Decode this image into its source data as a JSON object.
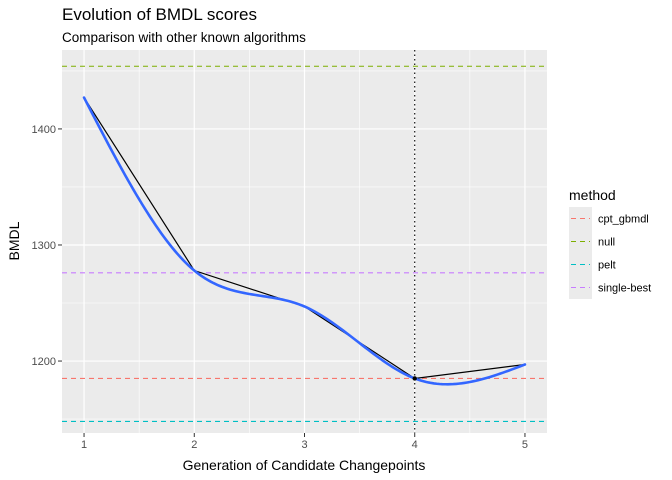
{
  "chart_data": {
    "type": "line",
    "title": "Evolution of BMDL scores",
    "subtitle": "Comparison with other known algorithms",
    "xlabel": "Generation of Candidate Changepoints",
    "ylabel": "BMDL",
    "xlim": [
      0.8,
      5.2
    ],
    "ylim": [
      1138,
      1468
    ],
    "x_ticks": [
      1,
      2,
      3,
      4,
      5
    ],
    "y_ticks": [
      1200,
      1300,
      1400
    ],
    "grid": true,
    "series": [
      {
        "type": "line",
        "color": "#000000",
        "x": [
          1,
          2,
          3,
          4,
          5
        ],
        "y": [
          1427,
          1278,
          1247,
          1185,
          1197
        ]
      },
      {
        "type": "smooth",
        "color": "#3366FF",
        "x": [
          1,
          2,
          3,
          4,
          5
        ],
        "y": [
          1427,
          1278,
          1247,
          1185,
          1197
        ]
      }
    ],
    "reference_lines": [
      {
        "name": "cpt_gbmdl",
        "y": 1185,
        "color": "#F8766D"
      },
      {
        "name": "null",
        "y": 1454,
        "color": "#7CAE00"
      },
      {
        "name": "pelt",
        "y": 1148,
        "color": "#00BFC4"
      },
      {
        "name": "single-best",
        "y": 1276,
        "color": "#C77CFF"
      }
    ],
    "vline": {
      "x": 4,
      "color": "#000000",
      "style": "dotted"
    },
    "legend": {
      "title": "method",
      "placement": "right",
      "entries": [
        "cpt_gbmdl",
        "null",
        "pelt",
        "single-best"
      ]
    }
  }
}
